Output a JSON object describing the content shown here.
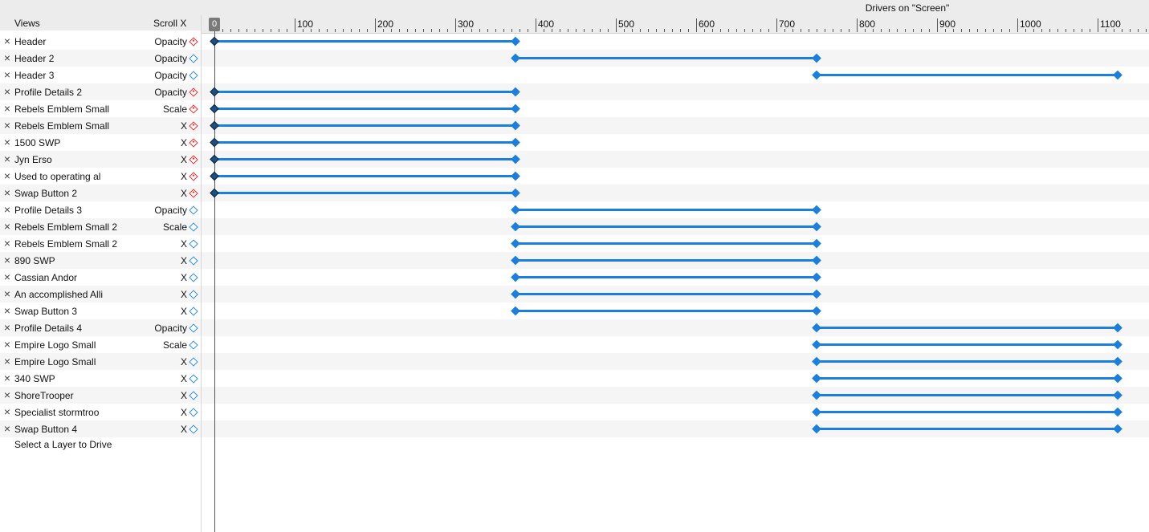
{
  "header": {
    "views_label": "Views",
    "scroll_label": "Scroll X",
    "drivers_title": "Drivers on \"Screen\""
  },
  "ruler": {
    "current": "0",
    "ticks": [
      "100",
      "200",
      "300",
      "400",
      "500",
      "600",
      "700",
      "800",
      "900",
      "1000",
      "1100"
    ]
  },
  "colors": {
    "accent": "#1a7fe0",
    "keyframe_start": "#1f4e80",
    "red": "#e0302c"
  },
  "rows": [
    {
      "name": "Header",
      "property": "Opacity",
      "icon": "red",
      "start": 0,
      "end": 375
    },
    {
      "name": "Header 2",
      "property": "Opacity",
      "icon": "blue",
      "start": 375,
      "end": 750
    },
    {
      "name": "Header 3",
      "property": "Opacity",
      "icon": "blue",
      "start": 750,
      "end": 1125
    },
    {
      "name": "Profile Details 2",
      "property": "Opacity",
      "icon": "red",
      "start": 0,
      "end": 375
    },
    {
      "name": "Rebels Emblem Small",
      "property": "Scale",
      "icon": "red",
      "start": 0,
      "end": 375
    },
    {
      "name": "Rebels Emblem Small",
      "property": "X",
      "icon": "red",
      "start": 0,
      "end": 375
    },
    {
      "name": "1500 SWP",
      "property": "X",
      "icon": "red",
      "start": 0,
      "end": 375
    },
    {
      "name": "Jyn Erso",
      "property": "X",
      "icon": "red",
      "start": 0,
      "end": 375
    },
    {
      "name": "Used to operating al",
      "property": "X",
      "icon": "red",
      "start": 0,
      "end": 375
    },
    {
      "name": "Swap Button 2",
      "property": "X",
      "icon": "red",
      "start": 0,
      "end": 375
    },
    {
      "name": "Profile Details 3",
      "property": "Opacity",
      "icon": "blue",
      "start": 375,
      "end": 750
    },
    {
      "name": "Rebels Emblem Small 2",
      "property": "Scale",
      "icon": "blue",
      "start": 375,
      "end": 750
    },
    {
      "name": "Rebels Emblem Small 2",
      "property": "X",
      "icon": "blue",
      "start": 375,
      "end": 750
    },
    {
      "name": "890 SWP",
      "property": "X",
      "icon": "blue",
      "start": 375,
      "end": 750
    },
    {
      "name": "Cassian Andor",
      "property": "X",
      "icon": "blue",
      "start": 375,
      "end": 750
    },
    {
      "name": "An accomplished Alli",
      "property": "X",
      "icon": "blue",
      "start": 375,
      "end": 750
    },
    {
      "name": "Swap Button 3",
      "property": "X",
      "icon": "blue",
      "start": 375,
      "end": 750
    },
    {
      "name": "Profile Details 4",
      "property": "Opacity",
      "icon": "blue",
      "start": 750,
      "end": 1125
    },
    {
      "name": "Empire Logo Small",
      "property": "Scale",
      "icon": "blue",
      "start": 750,
      "end": 1125
    },
    {
      "name": "Empire Logo Small",
      "property": "X",
      "icon": "blue",
      "start": 750,
      "end": 1125
    },
    {
      "name": "340 SWP",
      "property": "X",
      "icon": "blue",
      "start": 750,
      "end": 1125
    },
    {
      "name": "ShoreTrooper",
      "property": "X",
      "icon": "blue",
      "start": 750,
      "end": 1125
    },
    {
      "name": "Specialist stormtroo",
      "property": "X",
      "icon": "blue",
      "start": 750,
      "end": 1125
    },
    {
      "name": "Swap Button 4",
      "property": "X",
      "icon": "blue",
      "start": 750,
      "end": 1125
    }
  ],
  "footer": {
    "select_layer_label": "Select a Layer to Drive"
  }
}
